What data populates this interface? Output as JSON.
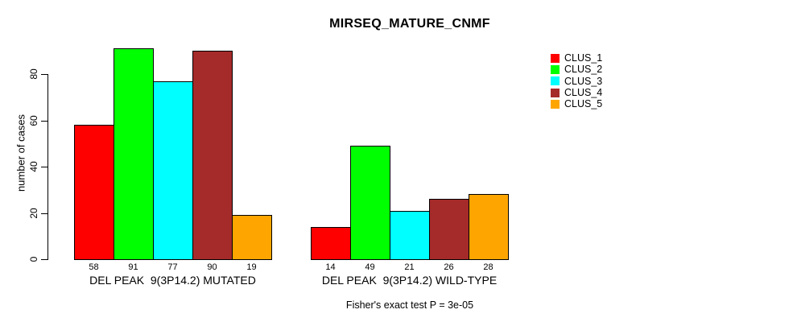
{
  "chart_data": {
    "type": "bar",
    "title": "MIRSEQ_MATURE_CNMF",
    "ylabel": "number of cases",
    "xlabel": "",
    "ylim": [
      0,
      91
    ],
    "yticks": [
      0,
      20,
      40,
      60,
      80
    ],
    "grid": false,
    "legend_position": "right-outside",
    "bar_border_color": "#000000",
    "background_color": "#ffffff",
    "categories": [
      "DEL PEAK  9(3P14.2) MUTATED",
      "DEL PEAK  9(3P14.2) WILD-TYPE"
    ],
    "series": [
      {
        "name": "CLUS_1",
        "color": "#FF0000",
        "values": [
          58,
          14
        ]
      },
      {
        "name": "CLUS_2",
        "color": "#00FF00",
        "values": [
          91,
          49
        ]
      },
      {
        "name": "CLUS_3",
        "color": "#00FFFF",
        "values": [
          77,
          21
        ]
      },
      {
        "name": "CLUS_4",
        "color": "#A52A2A",
        "values": [
          90,
          26
        ]
      },
      {
        "name": "CLUS_5",
        "color": "#FFA500",
        "values": [
          19,
          28
        ]
      }
    ],
    "value_labels_shown": true,
    "annotation": "Fisher's exact test P = 3e-05"
  }
}
